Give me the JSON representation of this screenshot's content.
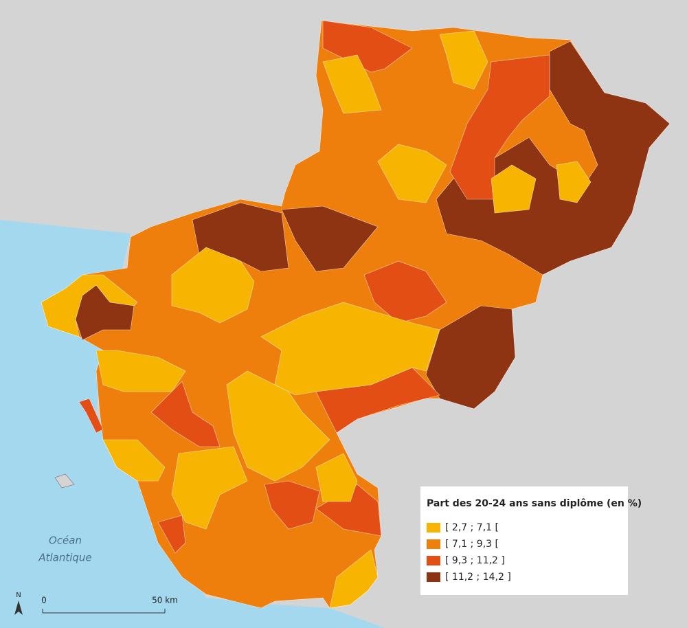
{
  "legend": {
    "title": "Part des 20-24 ans sans diplôme (en %)",
    "classes": [
      {
        "label": "[ 2,7 ; 7,1 [",
        "color": "#f7b400"
      },
      {
        "label": "[ 7,1 ; 9,3 [",
        "color": "#ee7f0c"
      },
      {
        "label": "[ 9,3 ; 11,2 ]",
        "color": "#e34e14"
      },
      {
        "label": "[ 11,2 ; 14,2 ]",
        "color": "#8e3413"
      }
    ]
  },
  "ocean_label": [
    "Océan",
    "Atlantique"
  ],
  "scale_bar": {
    "start_label": "0",
    "end_label": "50 km"
  },
  "north_label": "N"
}
